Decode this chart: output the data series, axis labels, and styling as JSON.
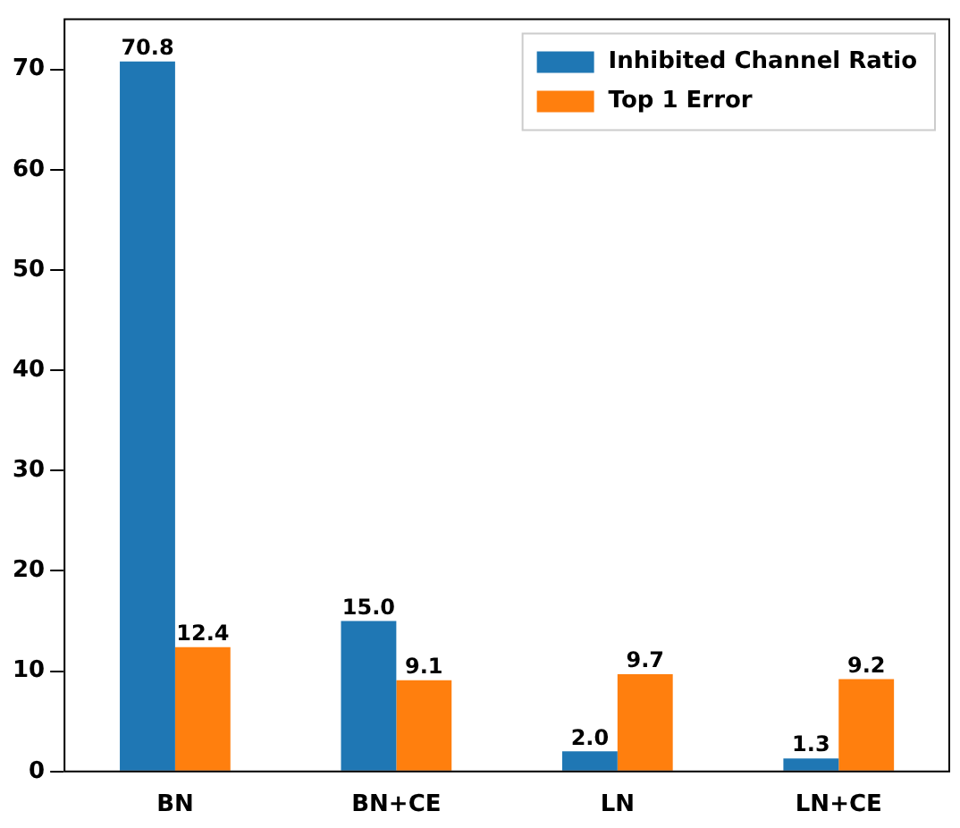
{
  "chart_data": {
    "type": "bar",
    "categories": [
      "BN",
      "BN+CE",
      "LN",
      "LN+CE"
    ],
    "series": [
      {
        "name": "Inhibited Channel Ratio",
        "color": "#1f77b4",
        "values": [
          70.8,
          15.0,
          2.0,
          1.3
        ],
        "value_labels": [
          "70.8",
          "15.0",
          "2.0",
          "1.3"
        ]
      },
      {
        "name": "Top 1 Error",
        "color": "#ff7f0e",
        "values": [
          12.4,
          9.1,
          9.7,
          9.2
        ],
        "value_labels": [
          "12.4",
          "9.1",
          "9.7",
          "9.2"
        ]
      }
    ],
    "ylim": [
      0,
      75
    ],
    "yticks": [
      0,
      10,
      20,
      30,
      40,
      50,
      60,
      70
    ],
    "grid": false,
    "legend": "top right"
  }
}
